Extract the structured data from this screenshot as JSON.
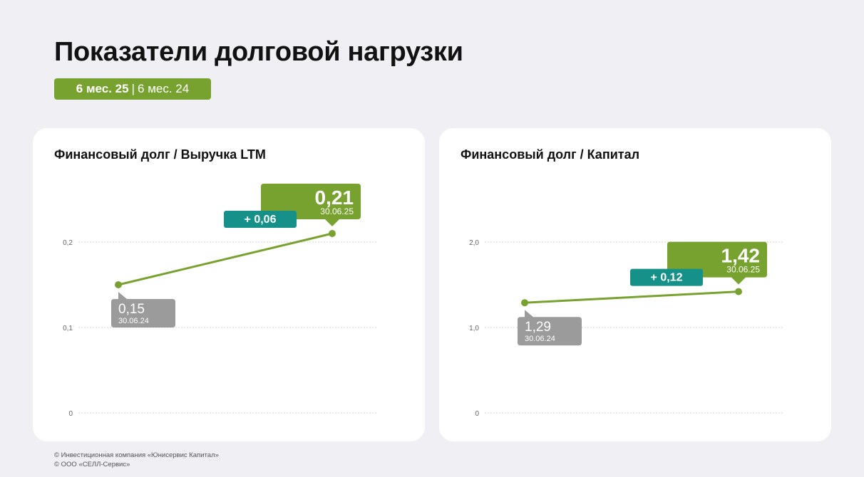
{
  "title": "Показатели долговой нагрузки",
  "period": {
    "current": "6 мес. 25",
    "separator": "|",
    "previous": "6 мес. 24"
  },
  "colors": {
    "accent": "#78a22f",
    "delta": "#16918a",
    "previous": "#9b9b9b",
    "grid": "#d6d6d6"
  },
  "charts": [
    {
      "title": "Финансовый долг / Выручка LTM",
      "chart_data": {
        "type": "line",
        "title": "Финансовый долг / Выручка LTM",
        "x": [
          "30.06.24",
          "30.06.25"
        ],
        "series": [
          {
            "values": [
              0.15,
              0.21
            ]
          }
        ],
        "ylim": [
          0,
          0.3
        ],
        "yticks": [
          0,
          0.1,
          0.2
        ],
        "ytick_labels": [
          "0",
          "0,1",
          "0,2"
        ],
        "grid": true,
        "start_label": {
          "value": "0,15",
          "date": "30.06.24"
        },
        "end_label": {
          "value": "0,21",
          "date": "30.06.25"
        },
        "delta_label": "+ 0,06"
      }
    },
    {
      "title": "Финансовый долг / Капитал",
      "chart_data": {
        "type": "line",
        "title": "Финансовый долг / Капитал",
        "x": [
          "30.06.24",
          "30.06.25"
        ],
        "series": [
          {
            "values": [
              1.29,
              1.42
            ]
          }
        ],
        "ylim": [
          0,
          3.0
        ],
        "yticks": [
          0,
          1.0,
          2.0
        ],
        "ytick_labels": [
          "0",
          "1,0",
          "2,0"
        ],
        "grid": true,
        "start_label": {
          "value": "1,29",
          "date": "30.06.24"
        },
        "end_label": {
          "value": "1,42",
          "date": "30.06.25"
        },
        "delta_label": "+ 0,12"
      }
    }
  ],
  "footer": [
    "© Инвестиционная компания «Юнисервис Капитал»",
    "© ООО «СЕЛЛ-Сервис»"
  ]
}
